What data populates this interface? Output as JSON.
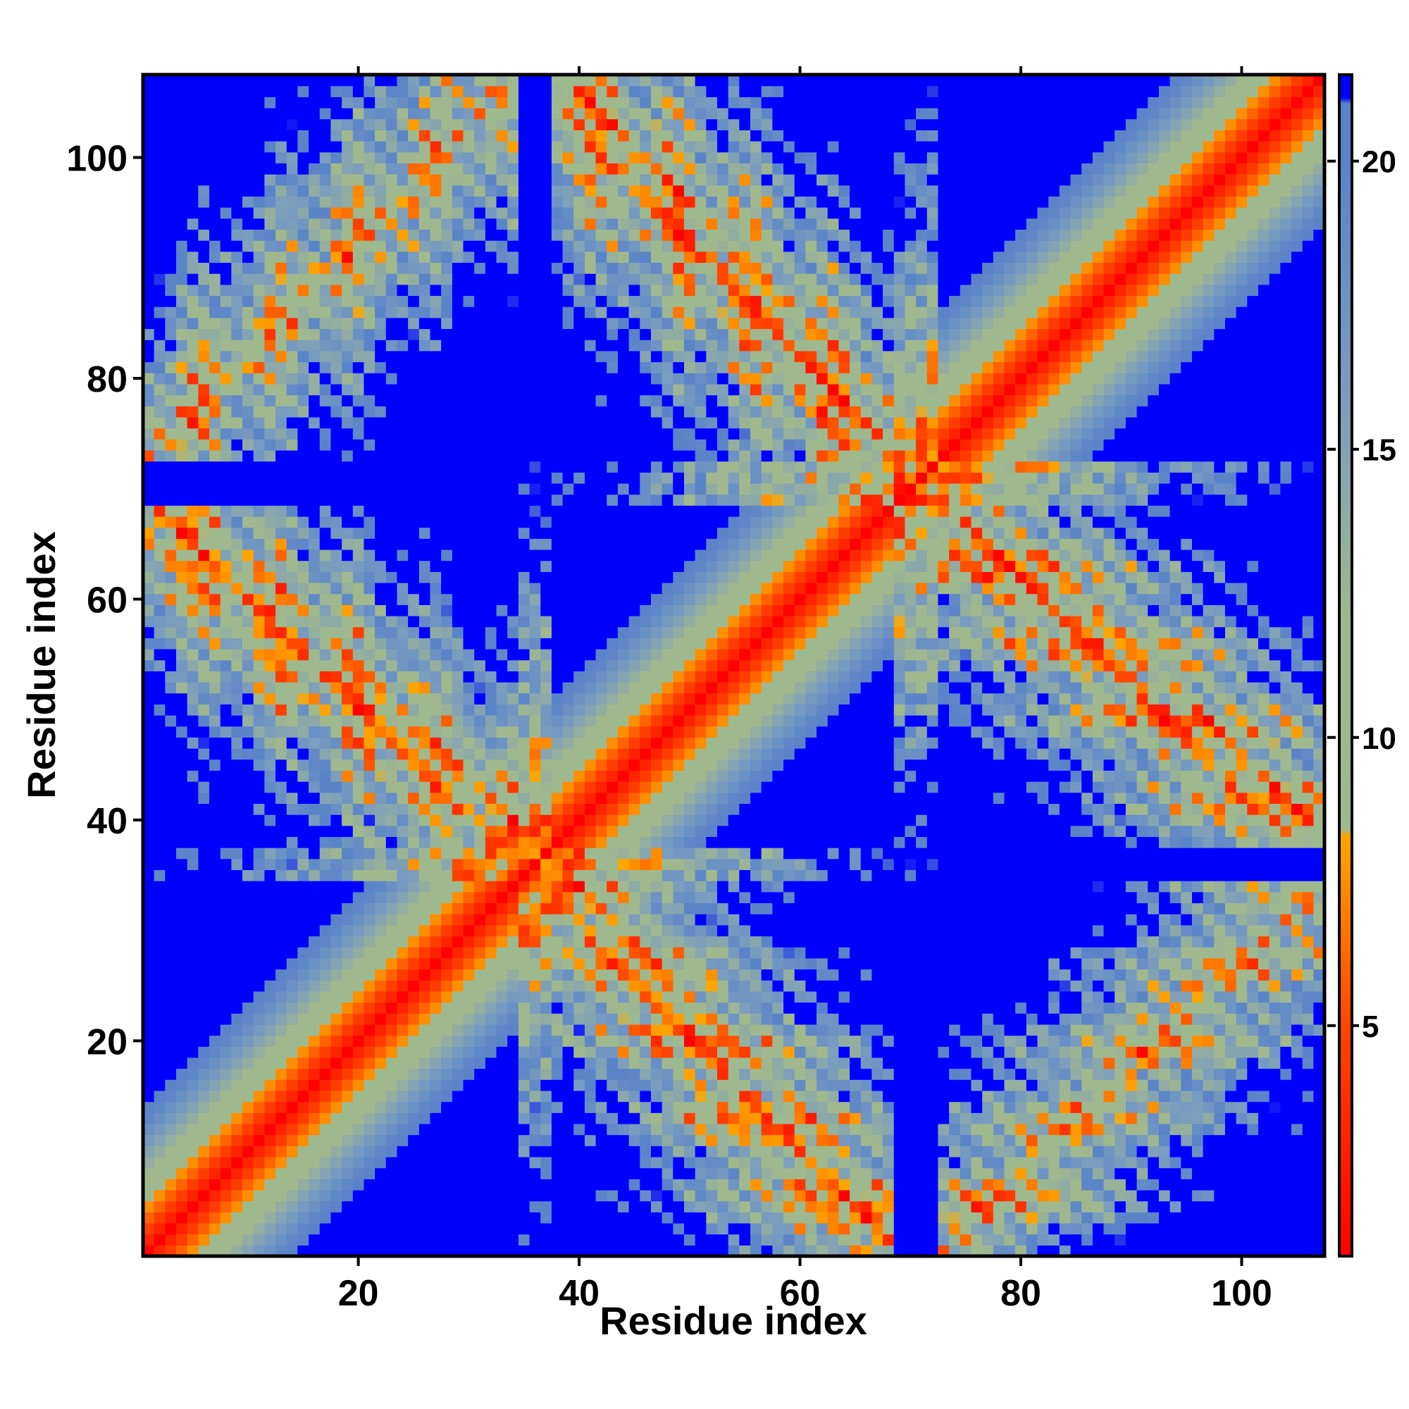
{
  "chart_data": {
    "type": "heatmap",
    "title": "",
    "xlabel": "Residue index",
    "ylabel": "Residue index",
    "n_residues": 107,
    "xlim": [
      1,
      107
    ],
    "ylim": [
      1,
      107
    ],
    "x_ticks": [
      20,
      40,
      60,
      80,
      100
    ],
    "y_ticks": [
      20,
      40,
      60,
      80,
      100
    ],
    "colorbar": {
      "ticks": [
        5,
        10,
        15,
        20
      ],
      "range": [
        1,
        21.5
      ],
      "placement": "right",
      "stops": [
        {
          "value": 1,
          "color": "#ff0000"
        },
        {
          "value": 5,
          "color": "#ff4500"
        },
        {
          "value": 8.3,
          "color": "#ffa500"
        },
        {
          "value": 8.4,
          "color": "#9fb98e"
        },
        {
          "value": 12,
          "color": "#a0b88e"
        },
        {
          "value": 16,
          "color": "#7a9cbf"
        },
        {
          "value": 20,
          "color": "#5b84c8"
        },
        {
          "value": 21.0,
          "color": "#5b84c8"
        },
        {
          "value": 21.1,
          "color": "#0000ff"
        }
      ]
    },
    "cap_value": 21.5,
    "secondary_structure": {
      "helices": [
        [
          1,
          34
        ],
        [
          38,
          68
        ],
        [
          73,
          107
        ]
      ],
      "helix_contacts": [
        {
          "a": [
            1,
            34
          ],
          "b": [
            38,
            68
          ],
          "note": "antiparallel"
        },
        {
          "a": [
            38,
            68
          ],
          "b": [
            73,
            107
          ],
          "note": "antiparallel"
        },
        {
          "a": [
            1,
            34
          ],
          "b": [
            73,
            107
          ],
          "note": "contact"
        }
      ]
    },
    "colors": {
      "far": "#0000ff",
      "mid": "#a0b88e",
      "near": "#ffa500",
      "contact": "#ff0000"
    }
  }
}
